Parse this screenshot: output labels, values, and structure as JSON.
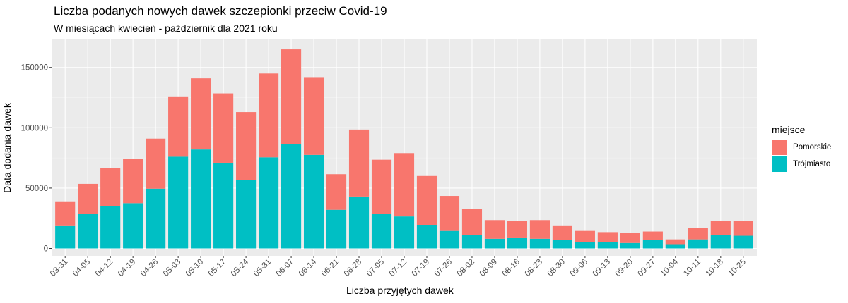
{
  "chart_data": {
    "type": "bar",
    "stacked": true,
    "title": "Liczba podanych nowych dawek szczepionki przeciw Covid-19",
    "subtitle": "W miesiącach kwiecień - październik dla 2021 roku",
    "xlabel": "Liczba przyjętych dawek",
    "ylabel": "Data dodania dawek",
    "ylim": [
      0,
      170000
    ],
    "yticks": [
      0,
      50000,
      100000,
      150000
    ],
    "ytick_labels": [
      "0",
      "50000",
      "100000",
      "150000"
    ],
    "grid": true,
    "legend": {
      "title": "miejsce",
      "placement": "right"
    },
    "categories": [
      "03-31",
      "04-05",
      "04-12",
      "04-19",
      "04-26",
      "05-03",
      "05-10",
      "05-17",
      "05-24",
      "05-31",
      "06-07",
      "06-14",
      "06-21",
      "06-28",
      "07-05",
      "07-12",
      "07-19",
      "07-26",
      "08-02",
      "08-09",
      "08-16",
      "08-23",
      "08-30",
      "09-06",
      "09-13",
      "09-20",
      "09-27",
      "10-04",
      "10-11",
      "10-18",
      "10-25"
    ],
    "series": [
      {
        "name": "Trójmiasto",
        "color": "#00BFC4",
        "values": [
          18500,
          28500,
          35000,
          37500,
          49500,
          76000,
          82000,
          71000,
          56500,
          75500,
          86500,
          77500,
          32000,
          43000,
          28500,
          26500,
          19500,
          14500,
          11000,
          8000,
          8500,
          8000,
          7000,
          5000,
          5000,
          4500,
          7000,
          3500,
          7500,
          11000,
          10500
        ]
      },
      {
        "name": "Pomorskie",
        "color": "#F8766D",
        "values": [
          20500,
          25000,
          31500,
          37000,
          41500,
          50000,
          59000,
          57500,
          56500,
          69500,
          78500,
          64500,
          29500,
          55500,
          45000,
          52500,
          40500,
          29000,
          21500,
          15500,
          14500,
          15500,
          11500,
          9500,
          8500,
          8500,
          7000,
          4000,
          9500,
          11500,
          12000
        ]
      }
    ]
  }
}
